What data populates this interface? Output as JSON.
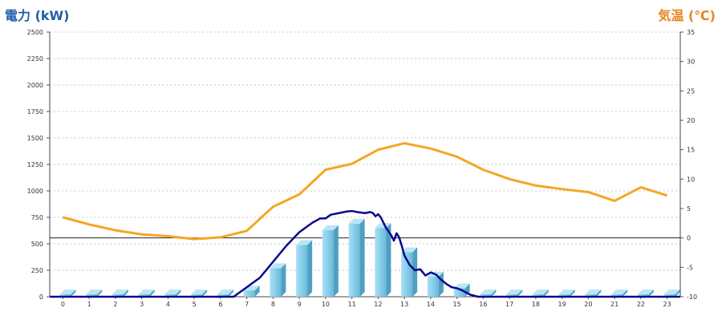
{
  "chart_data": {
    "type": "bar",
    "left_axis_title": "電力 (kW)",
    "right_axis_title": "気温 (℃)",
    "categories": [
      "0",
      "1",
      "2",
      "3",
      "4",
      "5",
      "6",
      "7",
      "8",
      "9",
      "10",
      "11",
      "12",
      "13",
      "14",
      "15",
      "16",
      "17",
      "18",
      "19",
      "20",
      "21",
      "22",
      "23"
    ],
    "left_ylim": [
      0,
      2500
    ],
    "left_ticks": [
      "0",
      "250",
      "500",
      "750",
      "1000",
      "1250",
      "1500",
      "1750",
      "2000",
      "2250",
      "2500"
    ],
    "right_ylim": [
      -10,
      35
    ],
    "right_ticks": [
      "-10",
      "-5",
      "0",
      "5",
      "10",
      "15",
      "20",
      "25",
      "30",
      "35"
    ],
    "grid": true,
    "bars": {
      "axis": "left",
      "color": "#87ceeb",
      "values": [
        0,
        0,
        0,
        0,
        0,
        0,
        0,
        60,
        270,
        490,
        630,
        690,
        650,
        420,
        190,
        80,
        0,
        0,
        0,
        0,
        0,
        0,
        0,
        0
      ]
    },
    "power_line": {
      "axis": "left",
      "color": "#0a0a8c",
      "x": [
        6.5,
        7.0,
        7.5,
        8.0,
        8.5,
        9.0,
        9.5,
        9.8,
        10.0,
        10.2,
        10.5,
        10.8,
        11.0,
        11.2,
        11.5,
        11.7,
        11.8,
        11.9,
        12.0,
        12.1,
        12.2,
        12.3,
        12.5,
        12.6,
        12.7,
        12.8,
        12.9,
        13.0,
        13.2,
        13.4,
        13.6,
        13.8,
        14.0,
        14.2,
        14.4,
        14.6,
        14.8,
        15.0,
        15.2,
        15.5,
        15.8
      ],
      "y": [
        0,
        90,
        180,
        330,
        480,
        610,
        700,
        740,
        740,
        775,
        790,
        805,
        810,
        800,
        790,
        800,
        790,
        760,
        780,
        750,
        700,
        650,
        580,
        530,
        600,
        560,
        480,
        390,
        300,
        250,
        260,
        200,
        230,
        210,
        160,
        120,
        90,
        80,
        60,
        20,
        0
      ]
    },
    "temperature": {
      "axis": "right",
      "color": "#f5a623",
      "values": [
        3.5,
        2.3,
        1.3,
        0.6,
        0.3,
        -0.2,
        0.1,
        1.2,
        5.3,
        7.4,
        11.6,
        12.6,
        15.0,
        16.1,
        15.2,
        13.8,
        11.6,
        10.0,
        8.9,
        8.3,
        7.8,
        6.3,
        8.6,
        7.2
      ]
    }
  }
}
